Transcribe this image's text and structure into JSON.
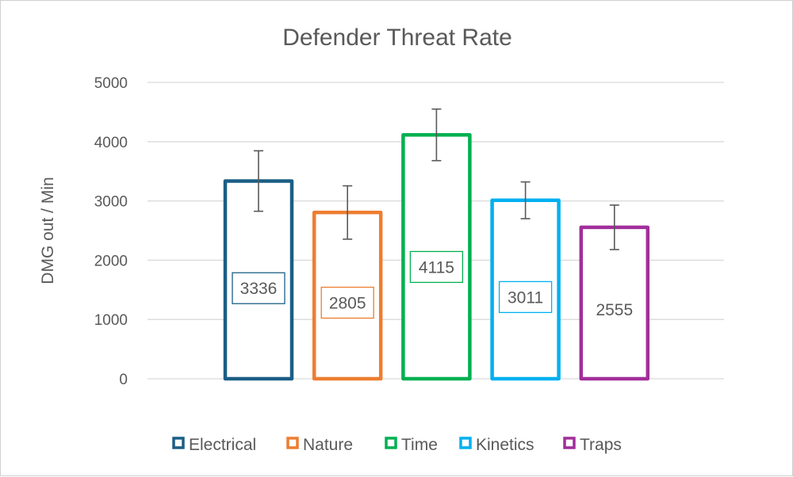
{
  "chart_data": {
    "type": "bar",
    "title": "Defender Threat Rate",
    "xlabel": "",
    "ylabel": "DMG out / Min",
    "ylim": [
      0,
      5000
    ],
    "yticks": [
      0,
      1000,
      2000,
      3000,
      4000,
      5000
    ],
    "grid": true,
    "legend_position": "bottom",
    "categories": [
      "Electrical",
      "Nature",
      "Time",
      "Kinetics",
      "Traps"
    ],
    "values": [
      3336,
      2805,
      4115,
      3011,
      2555
    ],
    "error_bars": [
      510,
      450,
      435,
      310,
      375
    ],
    "data_labels": [
      "3336",
      "2805",
      "4115",
      "3011",
      "2555"
    ],
    "colors": [
      "#1b5e85",
      "#ed7d31",
      "#00b050",
      "#00b0f0",
      "#a12e9a"
    ],
    "label_boxed": [
      true,
      true,
      true,
      true,
      false
    ]
  }
}
